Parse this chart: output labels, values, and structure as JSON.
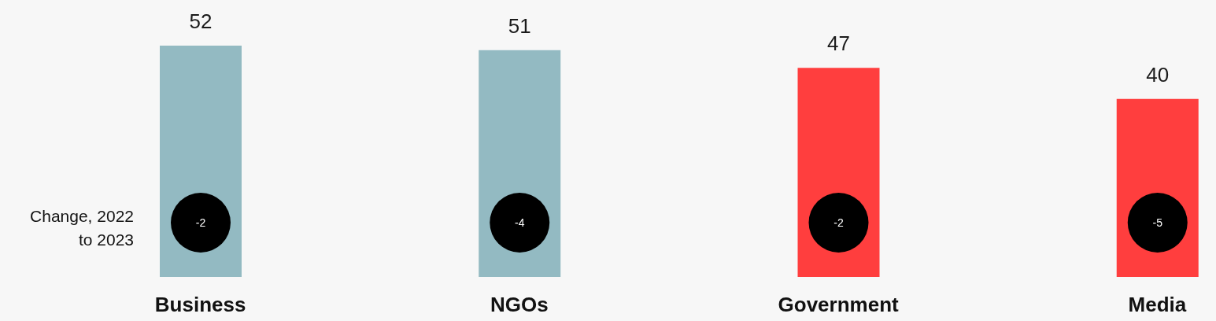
{
  "chart_data": {
    "type": "bar",
    "categories": [
      "Business",
      "NGOs",
      "Government",
      "Media"
    ],
    "values": [
      52,
      51,
      47,
      40
    ],
    "colors": [
      "#93bac2",
      "#93bac2",
      "#ff3e3e",
      "#ff3e3e"
    ],
    "data_labels": true,
    "annotations": [
      "Change, 2022 to 2023",
      "-2",
      "-4",
      "-2",
      "-5"
    ]
  }
}
